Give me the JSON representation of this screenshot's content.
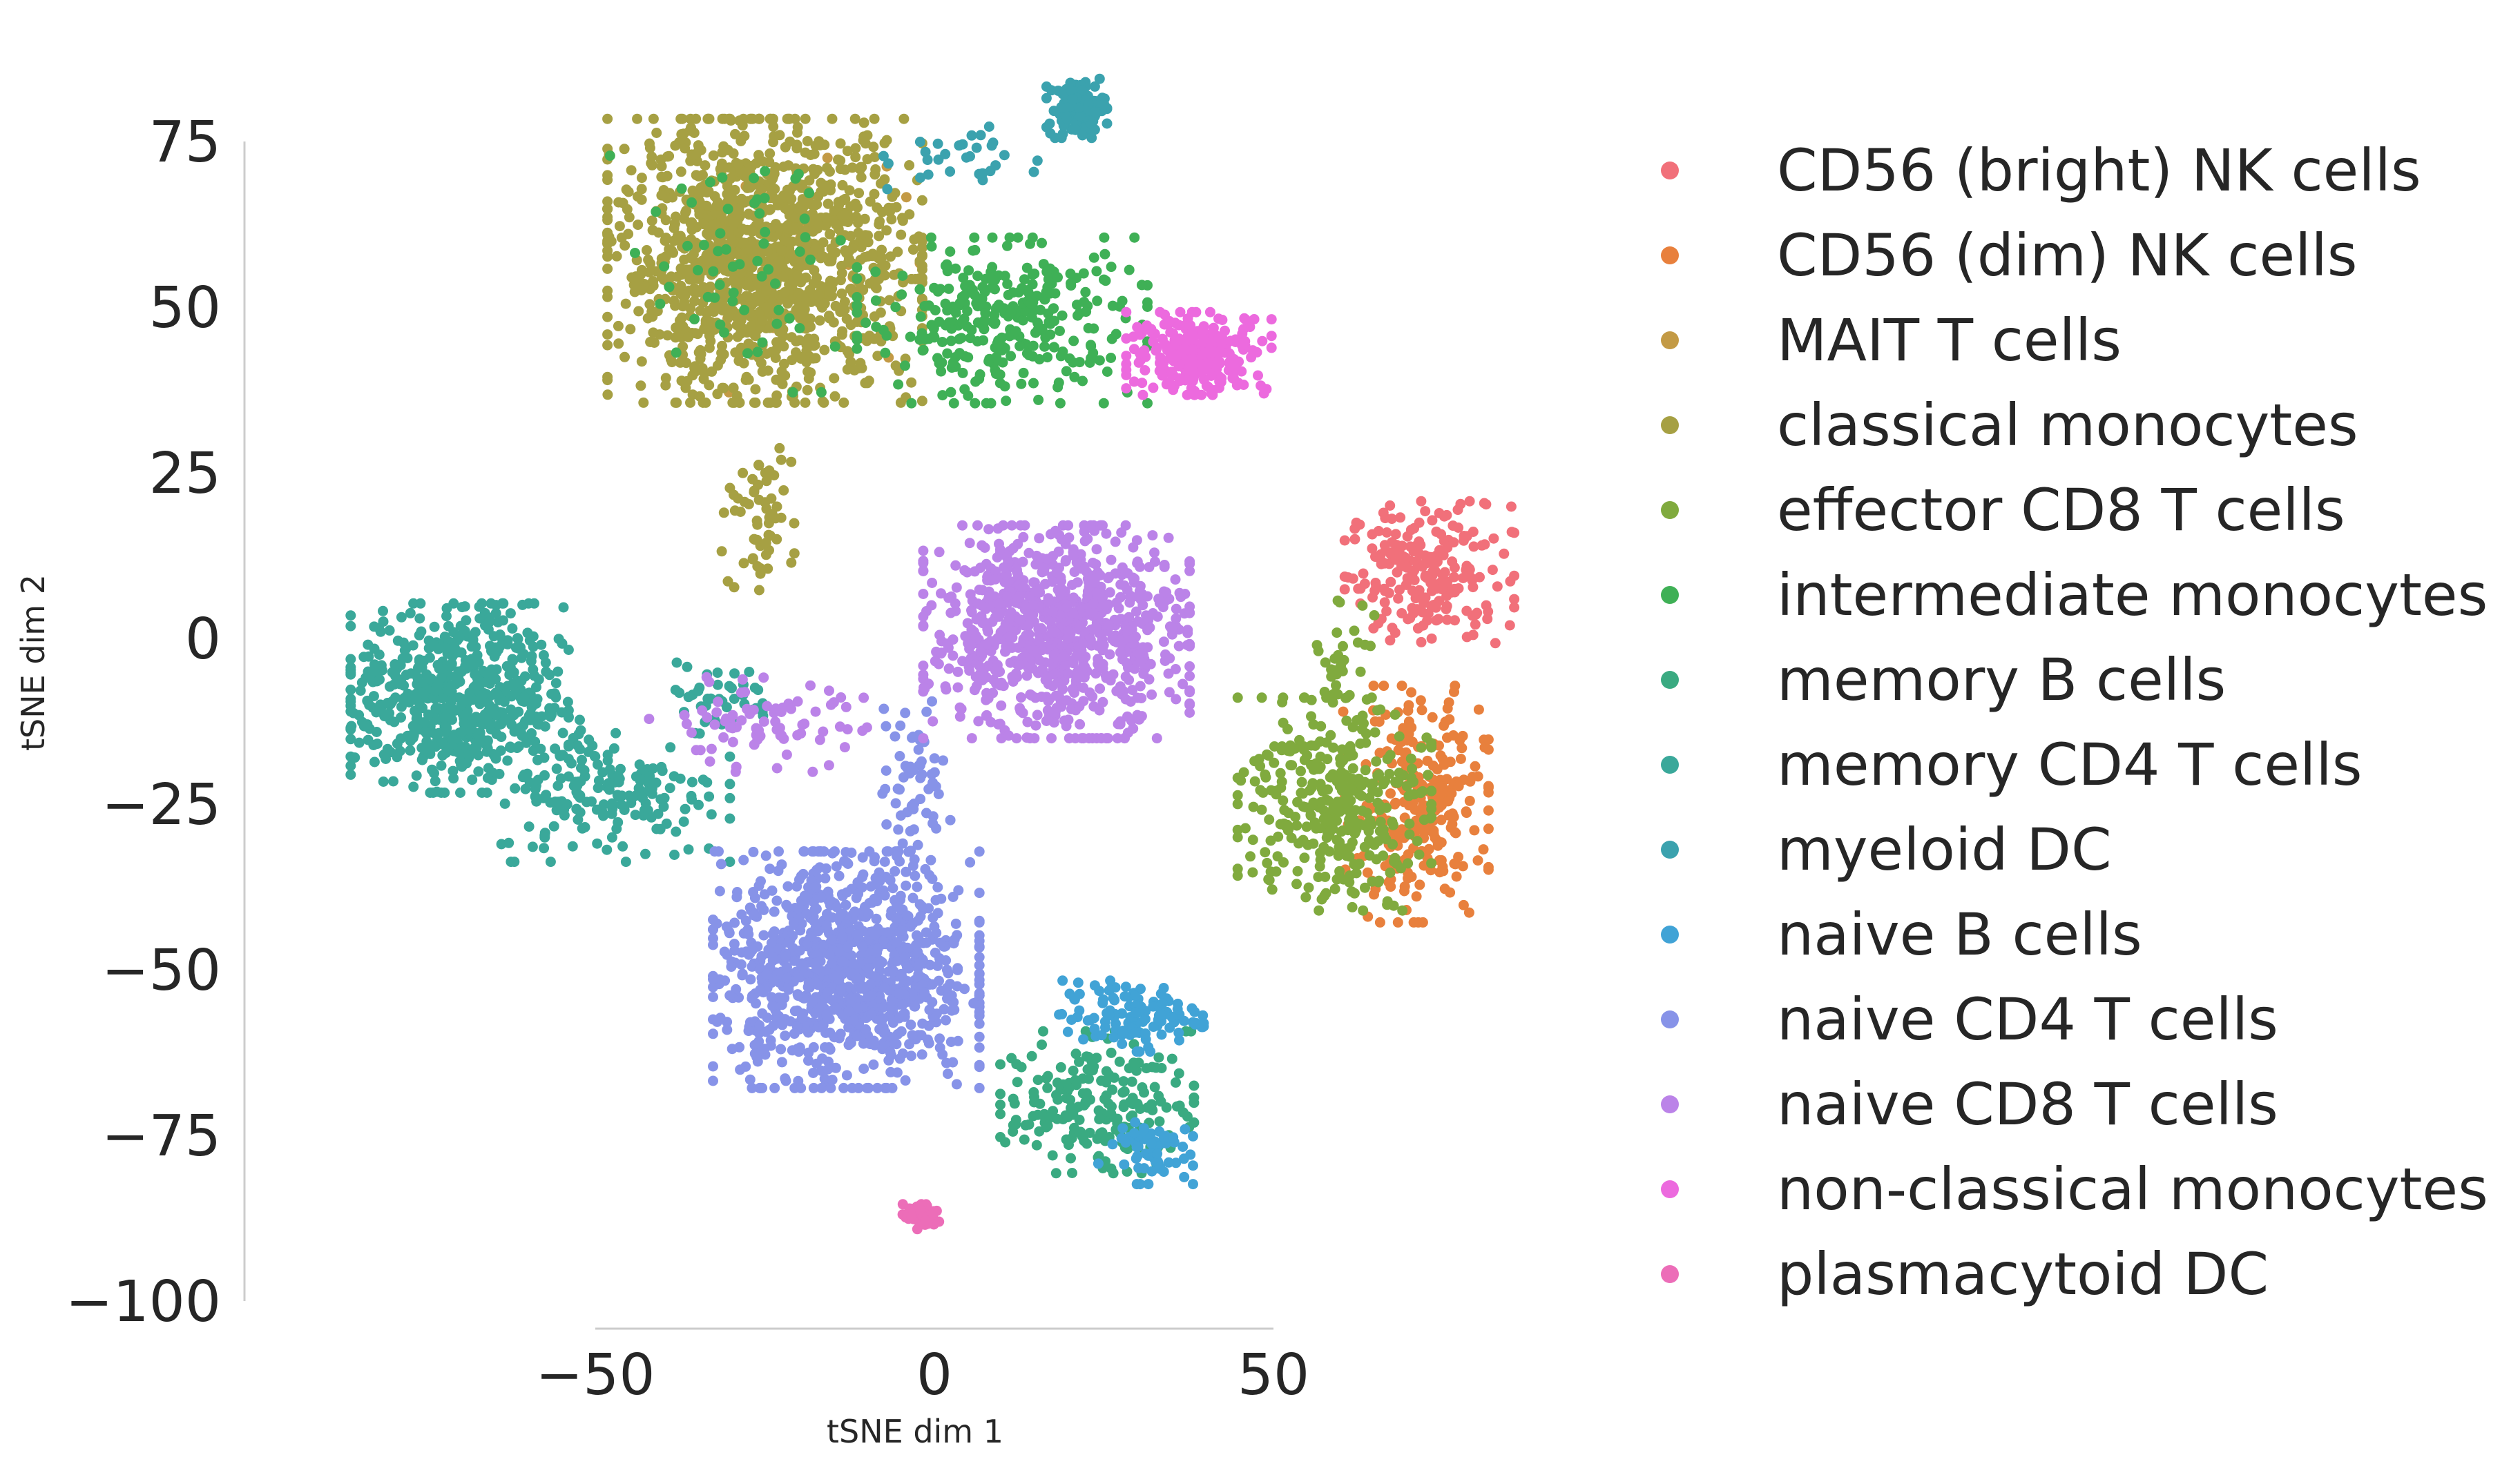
{
  "chart_data": {
    "type": "scatter",
    "title": "",
    "xlabel": "tSNE dim 1",
    "ylabel": "tSNE dim 2",
    "xlim": [
      -100,
      90
    ],
    "ylim": [
      -100,
      80
    ],
    "xticks": [
      -50,
      0,
      50
    ],
    "yticks": [
      75,
      50,
      25,
      0,
      -25,
      -50,
      -75,
      -100
    ],
    "xtick_labels": [
      "−50",
      "0",
      "50"
    ],
    "ytick_labels": [
      "75",
      "50",
      "25",
      "0",
      "−25",
      "−50",
      "−75",
      "−100"
    ],
    "legend_position": "right",
    "series": [
      {
        "name": "CD56 (bright) NK cells",
        "color": "#f1707a",
        "clusters": [
          {
            "cx": 73,
            "cy": 10,
            "sx": 7,
            "sy": 6,
            "n": 220
          }
        ]
      },
      {
        "name": "CD56 (dim) NK cells",
        "color": "#e8803d",
        "clusters": [
          {
            "cx": 71,
            "cy": -25,
            "sx": 6,
            "sy": 10,
            "n": 260
          }
        ]
      },
      {
        "name": "MAIT T cells",
        "color": "#c39a45",
        "clusters": [
          {
            "cx": -20,
            "cy": 55,
            "sx": 10,
            "sy": 10,
            "n": 20
          }
        ]
      },
      {
        "name": "classical monocytes",
        "color": "#a6a043",
        "clusters": [
          {
            "cx": -25,
            "cy": 57,
            "sx": 13,
            "sy": 12,
            "n": 1300
          },
          {
            "cx": -26,
            "cy": 18,
            "sx": 3,
            "sy": 6,
            "n": 60
          }
        ]
      },
      {
        "name": "effector CD8 T cells",
        "color": "#80aa3e",
        "clusters": [
          {
            "cx": 59,
            "cy": -25,
            "sx": 8,
            "sy": 9,
            "n": 340
          },
          {
            "cx": 60,
            "cy": -5,
            "sx": 3,
            "sy": 6,
            "n": 40
          }
        ]
      },
      {
        "name": "intermediate monocytes",
        "color": "#3fb056",
        "clusters": [
          {
            "cx": 10,
            "cy": 48,
            "sx": 12,
            "sy": 7,
            "n": 320
          },
          {
            "cx": -30,
            "cy": 55,
            "sx": 10,
            "sy": 10,
            "n": 60
          }
        ]
      },
      {
        "name": "memory B cells",
        "color": "#3aaa81",
        "clusters": [
          {
            "cx": 24,
            "cy": -70,
            "sx": 8,
            "sy": 6,
            "n": 200
          }
        ]
      },
      {
        "name": "memory CD4 T cells",
        "color": "#3aa89a",
        "clusters": [
          {
            "cx": -70,
            "cy": -9,
            "sx": 9,
            "sy": 8,
            "n": 620
          },
          {
            "cx": -48,
            "cy": -23,
            "sx": 10,
            "sy": 6,
            "n": 180
          },
          {
            "cx": -32,
            "cy": -9,
            "sx": 5,
            "sy": 3,
            "n": 40
          }
        ]
      },
      {
        "name": "myeloid DC",
        "color": "#3ba2ae",
        "clusters": [
          {
            "cx": 21,
            "cy": 80,
            "sx": 2.5,
            "sy": 2.5,
            "n": 110
          },
          {
            "cx": 5,
            "cy": 72,
            "sx": 7,
            "sy": 3,
            "n": 30
          }
        ]
      },
      {
        "name": "naive B cells",
        "color": "#41a3d6",
        "clusters": [
          {
            "cx": 29,
            "cy": -57,
            "sx": 6,
            "sy": 3,
            "n": 120
          },
          {
            "cx": 31,
            "cy": -77,
            "sx": 4,
            "sy": 3,
            "n": 60
          }
        ]
      },
      {
        "name": "naive CD4 T cells",
        "color": "#8793e8",
        "clusters": [
          {
            "cx": -13,
            "cy": -50,
            "sx": 11,
            "sy": 10,
            "n": 1000
          },
          {
            "cx": -3,
            "cy": -22,
            "sx": 3,
            "sy": 7,
            "n": 60
          }
        ]
      },
      {
        "name": "naive CD8 T cells",
        "color": "#bb83e8",
        "clusters": [
          {
            "cx": 18,
            "cy": 1,
            "sx": 11,
            "sy": 9,
            "n": 850
          },
          {
            "cx": -26,
            "cy": -13,
            "sx": 9,
            "sy": 4,
            "n": 80
          }
        ]
      },
      {
        "name": "non-classical monocytes",
        "color": "#ec6ade",
        "clusters": [
          {
            "cx": 39,
            "cy": 43,
            "sx": 6,
            "sy": 3.5,
            "n": 260
          }
        ]
      },
      {
        "name": "plasmacytoid DC",
        "color": "#ec6db8",
        "clusters": [
          {
            "cx": -2,
            "cy": -87,
            "sx": 1.5,
            "sy": 1.2,
            "n": 60
          }
        ]
      }
    ]
  }
}
